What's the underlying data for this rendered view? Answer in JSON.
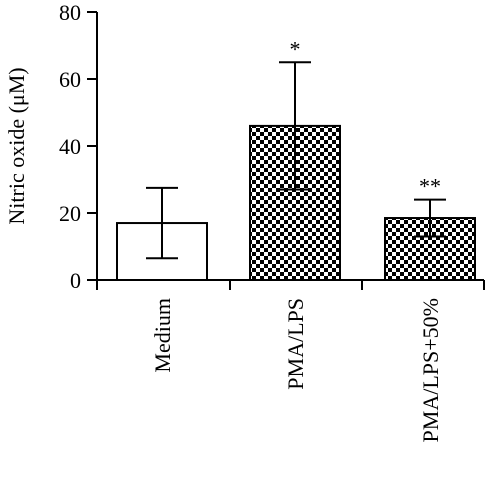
{
  "chart_data": {
    "type": "bar",
    "categories": [
      "Medium",
      "PMA/LPS",
      "PMA/LPS+50%"
    ],
    "values": [
      17,
      46,
      18.5
    ],
    "errors": [
      10.5,
      19,
      5.5
    ],
    "annotations": [
      "",
      "*",
      "**"
    ],
    "patterns": [
      "none",
      "checker",
      "checker"
    ],
    "title": "",
    "xlabel": "",
    "ylabel": "Nitric oxide (μM)",
    "ylim": [
      0,
      80
    ],
    "yticks": [
      0,
      20,
      40,
      60,
      80
    ],
    "grid": false,
    "legend": "none",
    "colors": {
      "bar_fill": "#ffffff",
      "bar_stroke": "#000000",
      "checker_dark": "#000000"
    }
  }
}
